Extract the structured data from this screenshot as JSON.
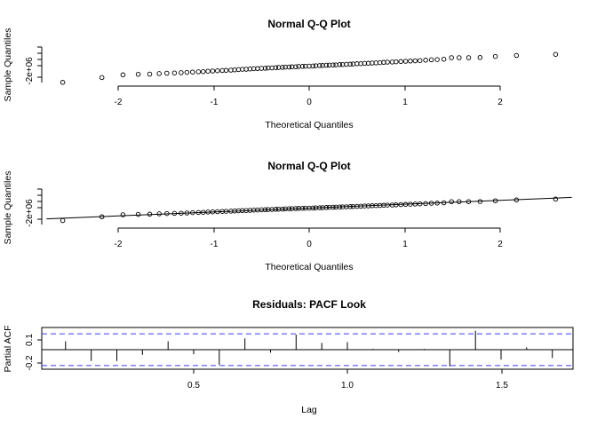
{
  "chart_data": [
    {
      "type": "scatter",
      "title": "Normal Q-Q Plot",
      "xlabel": "Theoretical Quantiles",
      "ylabel": "Sample Quantiles",
      "xticks": [
        "-2",
        "-1",
        "0",
        "1",
        "2"
      ],
      "yticks": [
        "-2e+06"
      ],
      "xlim": [
        -2.75,
        2.75
      ],
      "ylim": [
        -2200000,
        700000
      ],
      "points": [
        [
          -2.58,
          -2050000
        ],
        [
          -2.17,
          -1660000
        ],
        [
          -1.95,
          -1440000
        ],
        [
          -1.79,
          -1400000
        ],
        [
          -1.67,
          -1380000
        ],
        [
          -1.57,
          -1340000
        ],
        [
          -1.49,
          -1310000
        ],
        [
          -1.41,
          -1290000
        ],
        [
          -1.34,
          -1270000
        ],
        [
          -1.28,
          -1250000
        ],
        [
          -1.22,
          -1220000
        ],
        [
          -1.16,
          -1200000
        ],
        [
          -1.11,
          -1180000
        ],
        [
          -1.06,
          -1150000
        ],
        [
          -1.01,
          -1130000
        ],
        [
          -0.96,
          -1110000
        ],
        [
          -0.91,
          -1090000
        ],
        [
          -0.87,
          -1080000
        ],
        [
          -0.82,
          -1060000
        ],
        [
          -0.78,
          -1040000
        ],
        [
          -0.74,
          -1020000
        ],
        [
          -0.7,
          -1000000
        ],
        [
          -0.66,
          -990000
        ],
        [
          -0.62,
          -970000
        ],
        [
          -0.58,
          -950000
        ],
        [
          -0.54,
          -940000
        ],
        [
          -0.5,
          -920000
        ],
        [
          -0.46,
          -910000
        ],
        [
          -0.43,
          -890000
        ],
        [
          -0.39,
          -880000
        ],
        [
          -0.35,
          -860000
        ],
        [
          -0.32,
          -850000
        ],
        [
          -0.28,
          -840000
        ],
        [
          -0.25,
          -820000
        ],
        [
          -0.21,
          -810000
        ],
        [
          -0.18,
          -800000
        ],
        [
          -0.14,
          -790000
        ],
        [
          -0.11,
          -770000
        ],
        [
          -0.07,
          -760000
        ],
        [
          -0.04,
          -750000
        ],
        [
          0.0,
          -740000
        ],
        [
          0.04,
          -730000
        ],
        [
          0.07,
          -710000
        ],
        [
          0.11,
          -700000
        ],
        [
          0.14,
          -690000
        ],
        [
          0.18,
          -670000
        ],
        [
          0.21,
          -660000
        ],
        [
          0.25,
          -650000
        ],
        [
          0.28,
          -640000
        ],
        [
          0.32,
          -620000
        ],
        [
          0.35,
          -610000
        ],
        [
          0.39,
          -600000
        ],
        [
          0.43,
          -580000
        ],
        [
          0.46,
          -570000
        ],
        [
          0.5,
          -550000
        ],
        [
          0.54,
          -540000
        ],
        [
          0.58,
          -520000
        ],
        [
          0.62,
          -510000
        ],
        [
          0.66,
          -490000
        ],
        [
          0.7,
          -480000
        ],
        [
          0.74,
          -460000
        ],
        [
          0.78,
          -440000
        ],
        [
          0.82,
          -420000
        ],
        [
          0.87,
          -410000
        ],
        [
          0.91,
          -390000
        ],
        [
          0.96,
          -370000
        ],
        [
          1.01,
          -350000
        ],
        [
          1.06,
          -330000
        ],
        [
          1.11,
          -310000
        ],
        [
          1.16,
          -290000
        ],
        [
          1.22,
          -260000
        ],
        [
          1.28,
          -230000
        ],
        [
          1.34,
          -210000
        ],
        [
          1.41,
          -180000
        ],
        [
          1.49,
          -60000
        ],
        [
          1.57,
          -60000
        ],
        [
          1.67,
          -60000
        ],
        [
          1.79,
          -50000
        ],
        [
          1.95,
          40000
        ],
        [
          2.17,
          120000
        ],
        [
          2.58,
          210000
        ]
      ]
    },
    {
      "type": "scatter",
      "title": "Normal Q-Q Plot",
      "xlabel": "Theoretical Quantiles",
      "ylabel": "Sample Quantiles",
      "xticks": [
        "-2",
        "-1",
        "0",
        "1",
        "2"
      ],
      "yticks": [
        "-2e+06"
      ],
      "xlim": [
        -2.75,
        2.75
      ],
      "ylim": [
        -2200000,
        700000
      ],
      "qqline": {
        "intercept": -740000,
        "slope": 410000
      },
      "points": [
        [
          -2.58,
          -2050000
        ],
        [
          -2.17,
          -1660000
        ],
        [
          -1.95,
          -1440000
        ],
        [
          -1.79,
          -1400000
        ],
        [
          -1.67,
          -1380000
        ],
        [
          -1.57,
          -1340000
        ],
        [
          -1.49,
          -1310000
        ],
        [
          -1.41,
          -1290000
        ],
        [
          -1.34,
          -1270000
        ],
        [
          -1.28,
          -1250000
        ],
        [
          -1.22,
          -1220000
        ],
        [
          -1.16,
          -1200000
        ],
        [
          -1.11,
          -1180000
        ],
        [
          -1.06,
          -1150000
        ],
        [
          -1.01,
          -1130000
        ],
        [
          -0.96,
          -1110000
        ],
        [
          -0.91,
          -1090000
        ],
        [
          -0.87,
          -1080000
        ],
        [
          -0.82,
          -1060000
        ],
        [
          -0.78,
          -1040000
        ],
        [
          -0.74,
          -1020000
        ],
        [
          -0.7,
          -1000000
        ],
        [
          -0.66,
          -990000
        ],
        [
          -0.62,
          -970000
        ],
        [
          -0.58,
          -950000
        ],
        [
          -0.54,
          -940000
        ],
        [
          -0.5,
          -920000
        ],
        [
          -0.46,
          -910000
        ],
        [
          -0.43,
          -890000
        ],
        [
          -0.39,
          -880000
        ],
        [
          -0.35,
          -860000
        ],
        [
          -0.32,
          -850000
        ],
        [
          -0.28,
          -840000
        ],
        [
          -0.25,
          -820000
        ],
        [
          -0.21,
          -810000
        ],
        [
          -0.18,
          -800000
        ],
        [
          -0.14,
          -790000
        ],
        [
          -0.11,
          -770000
        ],
        [
          -0.07,
          -760000
        ],
        [
          -0.04,
          -750000
        ],
        [
          0.0,
          -740000
        ],
        [
          0.04,
          -730000
        ],
        [
          0.07,
          -710000
        ],
        [
          0.11,
          -700000
        ],
        [
          0.14,
          -690000
        ],
        [
          0.18,
          -670000
        ],
        [
          0.21,
          -660000
        ],
        [
          0.25,
          -650000
        ],
        [
          0.28,
          -640000
        ],
        [
          0.32,
          -620000
        ],
        [
          0.35,
          -610000
        ],
        [
          0.39,
          -600000
        ],
        [
          0.43,
          -580000
        ],
        [
          0.46,
          -570000
        ],
        [
          0.5,
          -550000
        ],
        [
          0.54,
          -540000
        ],
        [
          0.58,
          -520000
        ],
        [
          0.62,
          -510000
        ],
        [
          0.66,
          -490000
        ],
        [
          0.7,
          -480000
        ],
        [
          0.74,
          -460000
        ],
        [
          0.78,
          -440000
        ],
        [
          0.82,
          -420000
        ],
        [
          0.87,
          -410000
        ],
        [
          0.91,
          -390000
        ],
        [
          0.96,
          -370000
        ],
        [
          1.01,
          -350000
        ],
        [
          1.06,
          -330000
        ],
        [
          1.11,
          -310000
        ],
        [
          1.16,
          -290000
        ],
        [
          1.22,
          -260000
        ],
        [
          1.28,
          -230000
        ],
        [
          1.34,
          -210000
        ],
        [
          1.41,
          -180000
        ],
        [
          1.49,
          -60000
        ],
        [
          1.57,
          -60000
        ],
        [
          1.67,
          -60000
        ],
        [
          1.79,
          -50000
        ],
        [
          1.95,
          40000
        ],
        [
          2.17,
          120000
        ],
        [
          2.58,
          210000
        ]
      ]
    },
    {
      "type": "bar",
      "title": "Residuals: PACF Look",
      "xlabel": "Lag",
      "ylabel": "Partial ACF",
      "xticks": [
        "0.5",
        "1.0",
        "1.5"
      ],
      "yticks": [
        "-0.2",
        "0.1"
      ],
      "xlim": [
        0.05,
        1.75
      ],
      "ylim": [
        -0.25,
        0.25
      ],
      "ci": 0.21,
      "lags": [
        0.0833,
        0.1667,
        0.25,
        0.3333,
        0.4167,
        0.5,
        0.5833,
        0.6667,
        0.75,
        0.8333,
        0.9167,
        1.0,
        1.0833,
        1.1667,
        1.25,
        1.3333,
        1.4167,
        1.5,
        1.5833,
        1.6667
      ],
      "values": [
        0.11,
        -0.15,
        -0.15,
        -0.07,
        0.11,
        -0.06,
        -0.2,
        0.15,
        -0.04,
        0.2,
        0.09,
        0.1,
        0.01,
        -0.03,
        0.01,
        -0.22,
        0.25,
        -0.13,
        0.03,
        -0.11
      ]
    }
  ],
  "colors": {
    "axis": "#000000",
    "ci": "#3b3bff",
    "background": "#ffffff"
  }
}
